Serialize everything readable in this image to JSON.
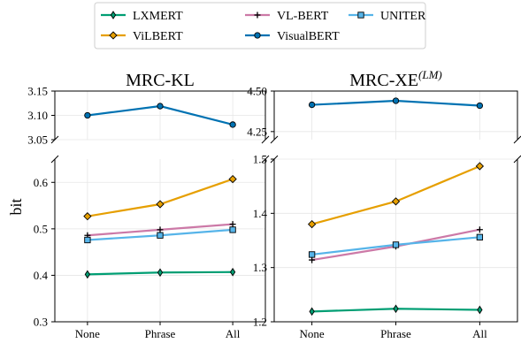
{
  "chart_data": {
    "type": "line",
    "ylabel": "bit",
    "categories": [
      "None",
      "Phrase",
      "All"
    ],
    "legend": {
      "placement": "top-center",
      "entries": [
        {
          "name": "LXMERT",
          "color": "#009E73",
          "marker": "thin-diamond"
        },
        {
          "name": "ViLBERT",
          "color": "#E69F00",
          "marker": "diamond"
        },
        {
          "name": "VL-BERT",
          "color": "#CC79A7",
          "marker": "plus"
        },
        {
          "name": "VisualBERT",
          "color": "#0072B2",
          "marker": "circle"
        },
        {
          "name": "UNITER",
          "color": "#56B4E9",
          "marker": "square"
        }
      ]
    },
    "panels": [
      {
        "title": "MRC-KL",
        "title_sup": "",
        "top_ylim": [
          3.05,
          3.15
        ],
        "top_ticks": [
          "3.05",
          "3.10",
          "3.15"
        ],
        "bottom_ylim": [
          0.3,
          0.65
        ],
        "bottom_ticks": [
          "0.3",
          "0.4",
          "0.5",
          "0.6"
        ],
        "series": [
          {
            "name": "LXMERT",
            "values": [
              0.402,
              0.406,
              0.407
            ]
          },
          {
            "name": "ViLBERT",
            "values": [
              0.527,
              0.553,
              0.607
            ]
          },
          {
            "name": "VL-BERT",
            "values": [
              0.486,
              0.498,
              0.51
            ]
          },
          {
            "name": "VisualBERT",
            "values": [
              3.1,
              3.119,
              3.081
            ]
          },
          {
            "name": "UNITER",
            "values": [
              0.476,
              0.486,
              0.498
            ]
          }
        ]
      },
      {
        "title": "MRC-XE",
        "title_sup": "(LM)",
        "top_ylim": [
          4.2,
          4.5
        ],
        "top_ticks": [
          "4.25",
          "4.50"
        ],
        "bottom_ylim": [
          1.2,
          1.5
        ],
        "bottom_ticks": [
          "1.2",
          "1.3",
          "1.4",
          "1.5"
        ],
        "series": [
          {
            "name": "LXMERT",
            "values": [
              1.219,
              1.224,
              1.222
            ]
          },
          {
            "name": "ViLBERT",
            "values": [
              1.38,
              1.422,
              1.487
            ]
          },
          {
            "name": "VL-BERT",
            "values": [
              1.314,
              1.339,
              1.37
            ]
          },
          {
            "name": "VisualBERT",
            "values": [
              4.415,
              4.44,
              4.41
            ]
          },
          {
            "name": "UNITER",
            "values": [
              1.324,
              1.342,
              1.356
            ]
          }
        ]
      }
    ]
  }
}
